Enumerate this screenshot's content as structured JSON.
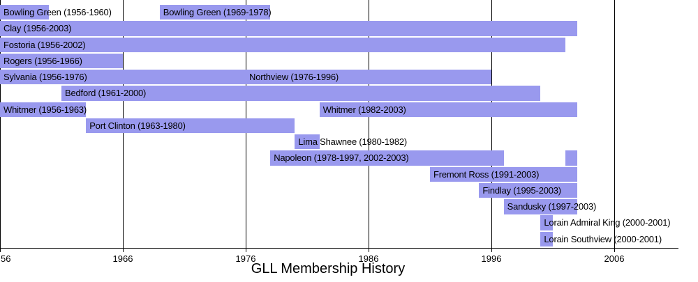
{
  "chart_data": {
    "type": "bar",
    "variant": "horizontal-timeline-gantt",
    "title": "GLL Membership History",
    "xlabel": "",
    "ylabel": "",
    "xlim": [
      1956,
      2012.8
    ],
    "grid": "vertical-decade-lines",
    "legend_position": "none",
    "x_ticks": [
      {
        "year": 1956,
        "label": "56",
        "clipped": true
      },
      {
        "year": 1966,
        "label": "1966",
        "clipped": false
      },
      {
        "year": 1976,
        "label": "1976",
        "clipped": false
      },
      {
        "year": 1986,
        "label": "1986",
        "clipped": false
      },
      {
        "year": 1996,
        "label": "1996",
        "clipped": false
      },
      {
        "year": 2006,
        "label": "2006",
        "clipped": false
      }
    ],
    "rows": [
      {
        "segments": [
          {
            "start": 1956,
            "end": 1960,
            "label": "Bowling Green (1956-1960)"
          },
          {
            "start": 1969,
            "end": 1978,
            "label": "Bowling Green (1969-1978)"
          }
        ]
      },
      {
        "segments": [
          {
            "start": 1956,
            "end": 2003,
            "label": "Clay (1956-2003)"
          }
        ]
      },
      {
        "segments": [
          {
            "start": 1956,
            "end": 2002,
            "label": "Fostoria (1956-2002)"
          }
        ]
      },
      {
        "segments": [
          {
            "start": 1956,
            "end": 1966,
            "label": "Rogers (1956-1966)"
          }
        ]
      },
      {
        "segments": [
          {
            "start": 1956,
            "end": 1976,
            "label": "Sylvania (1956-1976)"
          },
          {
            "start": 1976,
            "end": 1996,
            "label": "Northview (1976-1996)"
          }
        ]
      },
      {
        "segments": [
          {
            "start": 1961,
            "end": 2000,
            "label": "Bedford (1961-2000)"
          }
        ]
      },
      {
        "segments": [
          {
            "start": 1956,
            "end": 1963,
            "label": "Whitmer (1956-1963)"
          },
          {
            "start": 1982,
            "end": 2003,
            "label": "Whitmer (1982-2003)"
          }
        ]
      },
      {
        "segments": [
          {
            "start": 1963,
            "end": 1980,
            "label": "Port Clinton (1963-1980)"
          }
        ]
      },
      {
        "segments": [
          {
            "start": 1980,
            "end": 1982,
            "label": "Lima Shawnee (1980-1982)"
          }
        ]
      },
      {
        "segments": [
          {
            "start": 1978,
            "end": 1997,
            "label": "Napoleon (1978-1997, 2002-2003)"
          },
          {
            "start": 2002,
            "end": 2003,
            "label": ""
          }
        ]
      },
      {
        "segments": [
          {
            "start": 1991,
            "end": 2003,
            "label": "Fremont Ross (1991-2003)"
          }
        ]
      },
      {
        "segments": [
          {
            "start": 1995,
            "end": 2003,
            "label": "Findlay (1995-2003)"
          }
        ]
      },
      {
        "segments": [
          {
            "start": 1997,
            "end": 2003,
            "label": "Sandusky (1997-2003)"
          }
        ]
      },
      {
        "segments": [
          {
            "start": 2000,
            "end": 2001,
            "label": "Lorain Admiral King (2000-2001)"
          }
        ]
      },
      {
        "segments": [
          {
            "start": 2000,
            "end": 2001,
            "label": "Lorain Southview (2000-2001)"
          }
        ]
      }
    ],
    "colors": {
      "bar": "#9999ee",
      "grid": "#000000",
      "axis": "#000000",
      "text": "#000000",
      "background": "#ffffff"
    }
  }
}
